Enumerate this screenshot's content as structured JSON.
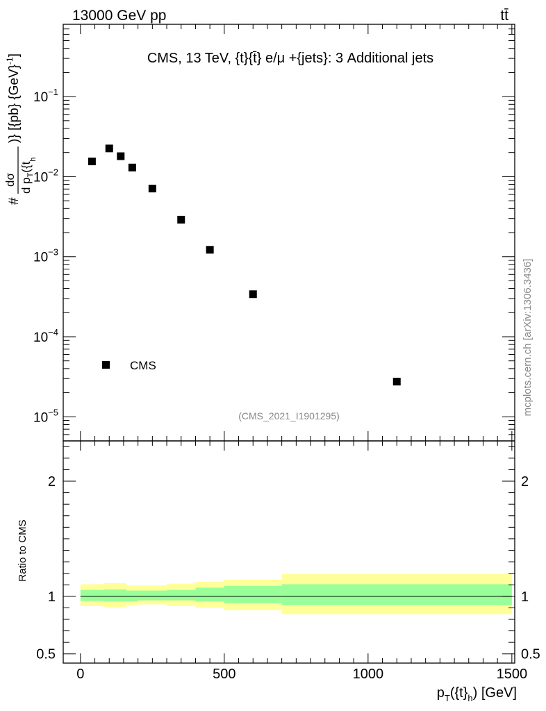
{
  "header": {
    "left": "13000 GeV pp",
    "right": "tt̄"
  },
  "watermark": "mcplots.cern.ch [arXiv:1306.3436]",
  "chart_data": [
    {
      "type": "scatter",
      "title": "CMS, 13 TeV, {t}{t̄} e/μ +{jets}: 3 Additional jets",
      "analysis_tag": "(CMS_2021_I1901295)",
      "ylabel": {
        "prefix": "#",
        "numerator": "dσ",
        "denominator": "d p",
        "denominator_sub": "T",
        "denominator_rest": "({t",
        "denominator_rest_sub": "h",
        "tail": ")} [{pb} {GeV}",
        "tail_sup": "-1",
        "tail_end": "]"
      },
      "yscale": "log",
      "ylim": [
        5e-06,
        0.8
      ],
      "xlim": [
        -60,
        1510
      ],
      "ytick_labels": [
        {
          "value": 0.1,
          "base": "10",
          "exp": "−1"
        },
        {
          "value": 0.01,
          "base": "10",
          "exp": "−2"
        },
        {
          "value": 0.001,
          "base": "10",
          "exp": "−3"
        },
        {
          "value": 0.0001,
          "base": "10",
          "exp": "−4"
        },
        {
          "value": 1e-05,
          "base": "10",
          "exp": "−5"
        }
      ],
      "legend": {
        "label": "CMS",
        "position": "bottom-left"
      },
      "series": [
        {
          "name": "CMS",
          "marker": "square",
          "x": [
            40,
            100,
            140,
            180,
            250,
            350,
            450,
            600,
            1100
          ],
          "y": [
            0.0155,
            0.0225,
            0.018,
            0.013,
            0.0071,
            0.0029,
            0.00122,
            0.00034,
            2.75e-05
          ]
        }
      ]
    },
    {
      "type": "area",
      "ylabel": "Ratio to CMS",
      "ylim": [
        0.42,
        2.35
      ],
      "xlim": [
        -60,
        1510
      ],
      "xlabel": {
        "main": "p",
        "sub": "T",
        "rest": "({t}",
        "rest_sub": "h",
        "end": ") [GeV]"
      },
      "xticks": [
        0,
        500,
        1000,
        1500
      ],
      "yticks": [
        0.5,
        1,
        2
      ],
      "reference_line": 1,
      "bins": [
        0,
        80,
        120,
        160,
        200,
        300,
        400,
        500,
        700,
        1500
      ],
      "inner_band": {
        "color": "#99ff99",
        "lo": [
          0.96,
          0.955,
          0.955,
          0.955,
          0.965,
          0.965,
          0.955,
          0.94,
          0.925
        ],
        "hi": [
          1.055,
          1.06,
          1.06,
          1.05,
          1.05,
          1.055,
          1.075,
          1.09,
          1.105
        ]
      },
      "outer_band": {
        "color": "#ffff99",
        "lo": [
          0.915,
          0.905,
          0.905,
          0.925,
          0.93,
          0.915,
          0.9,
          0.88,
          0.845
        ],
        "hi": [
          1.105,
          1.115,
          1.115,
          1.095,
          1.095,
          1.11,
          1.125,
          1.145,
          1.195
        ]
      }
    }
  ]
}
